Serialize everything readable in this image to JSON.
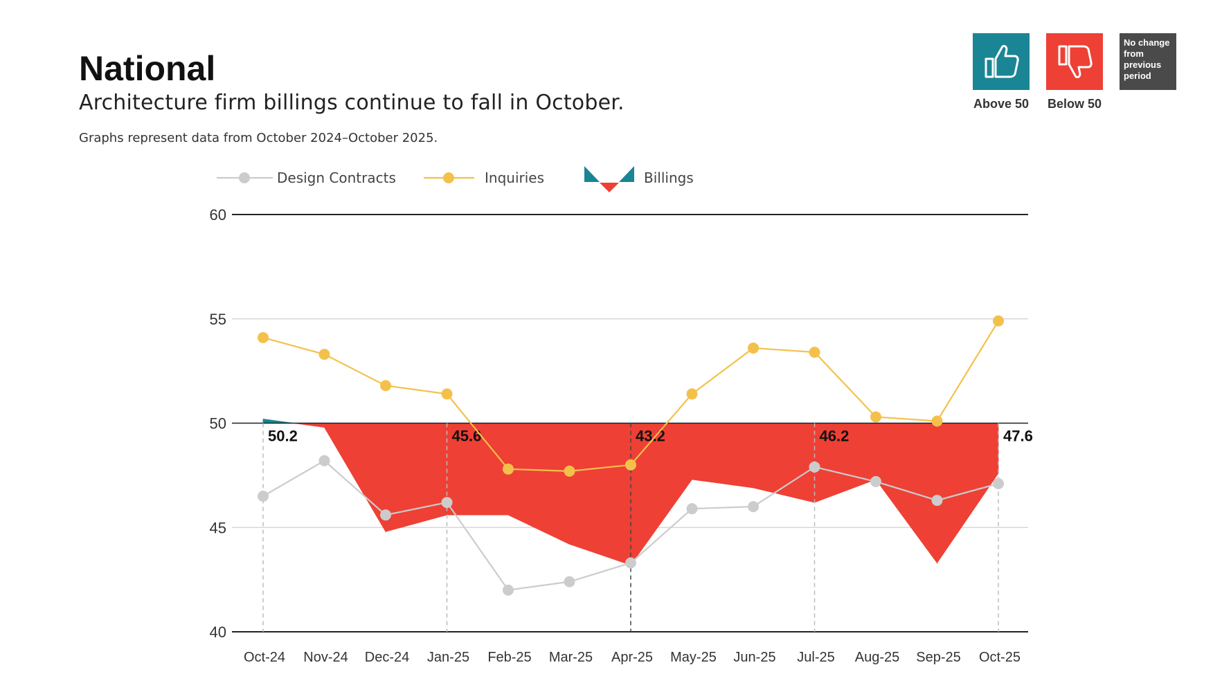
{
  "header": {
    "title": "National",
    "subtitle": "Architecture firm billings continue to fall in October.",
    "note": "Graphs represent data from October 2024–October 2025."
  },
  "badges": [
    {
      "label": "Above 50",
      "color": "#1a8594",
      "icon": "thumbs-up-icon"
    },
    {
      "label": "Below 50",
      "color": "#ee4035",
      "icon": "thumbs-down-icon"
    },
    {
      "label": "No change from previous period",
      "color": "#4a4a4a",
      "text": "No change from previous period"
    }
  ],
  "colors": {
    "above": "#1a8594",
    "below": "#ee4035",
    "inquiries": "#f3c14b",
    "design_contracts": "#cccccc",
    "axis": "#222222",
    "grid": "#d0d0d0"
  },
  "chart_data": {
    "type": "line",
    "title": "",
    "xlabel": "",
    "ylabel": "",
    "ylim": [
      40,
      60
    ],
    "yticks": [
      40,
      45,
      50,
      55,
      60
    ],
    "baseline": 50,
    "grid": true,
    "legend_position": "top-left",
    "categories": [
      "Oct-24",
      "Nov-24",
      "Dec-24",
      "Jan-25",
      "Feb-25",
      "Mar-25",
      "Apr-25",
      "May-25",
      "Jun-25",
      "Jul-25",
      "Aug-25",
      "Sep-25",
      "Oct-25"
    ],
    "series": [
      {
        "name": "Design Contracts",
        "kind": "line",
        "values": [
          46.5,
          48.2,
          45.6,
          46.2,
          42.0,
          42.4,
          43.3,
          45.9,
          46.0,
          47.9,
          47.2,
          46.3,
          47.1
        ]
      },
      {
        "name": "Inquiries",
        "kind": "line",
        "values": [
          54.1,
          53.3,
          51.8,
          51.4,
          47.8,
          47.7,
          48.0,
          51.4,
          53.6,
          53.4,
          50.3,
          50.1,
          54.9
        ]
      },
      {
        "name": "Billings",
        "kind": "area",
        "values": [
          50.2,
          49.8,
          44.8,
          45.6,
          45.6,
          44.2,
          43.2,
          47.3,
          46.9,
          46.2,
          47.3,
          43.3,
          47.6
        ]
      }
    ],
    "annotations": [
      {
        "category": "Oct-24",
        "label": "50.2"
      },
      {
        "category": "Jan-25",
        "label": "45.6"
      },
      {
        "category": "Apr-25",
        "label": "43.2"
      },
      {
        "category": "Jul-25",
        "label": "46.2"
      },
      {
        "category": "Oct-25",
        "label": "47.6"
      }
    ]
  }
}
